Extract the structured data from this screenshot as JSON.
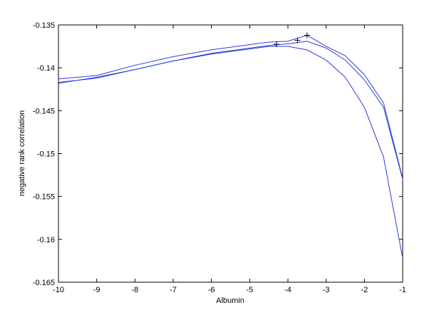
{
  "chart_data": {
    "type": "line",
    "x_label": "Albumin",
    "y_label": "negative rank correlation",
    "x": [
      -10,
      -9,
      -8,
      -7,
      -6,
      -5,
      -4.5,
      -4,
      -3.5,
      -3,
      -2.5,
      -2,
      -1.5,
      -1
    ],
    "series": [
      {
        "color": "#2b3fd6",
        "values": [
          -0.1413,
          -0.1409,
          -0.1397,
          -0.1387,
          -0.1379,
          -0.1373,
          -0.137,
          -0.1369,
          -0.1362,
          -0.1375,
          -0.1386,
          -0.1408,
          -0.1441,
          -0.1529
        ]
      },
      {
        "color": "#2b3fd6",
        "values": [
          -0.1417,
          -0.1412,
          -0.1402,
          -0.1392,
          -0.1383,
          -0.1377,
          -0.1374,
          -0.1372,
          -0.1369,
          -0.1377,
          -0.1391,
          -0.1414,
          -0.1446,
          -0.153
        ]
      },
      {
        "color": "#2b3fd6",
        "values": [
          -0.1418,
          -0.1411,
          -0.1402,
          -0.1392,
          -0.1384,
          -0.1378,
          -0.1375,
          -0.1375,
          -0.1379,
          -0.1391,
          -0.1411,
          -0.1446,
          -0.1504,
          -0.1622
        ]
      }
    ],
    "markers": {
      "x": [
        -4.3,
        -3.75,
        -3.5
      ],
      "values": [
        -0.13725,
        -0.1368,
        -0.1362
      ]
    },
    "xlim": [
      -10,
      -1
    ],
    "xticks": [
      -10,
      -9,
      -8,
      -7,
      -6,
      -5,
      -4,
      -3,
      -2,
      -1
    ],
    "ylim": [
      -0.165,
      -0.135
    ],
    "yticks": [
      -0.165,
      -0.16,
      -0.155,
      -0.15,
      -0.145,
      -0.14,
      -0.135
    ]
  }
}
